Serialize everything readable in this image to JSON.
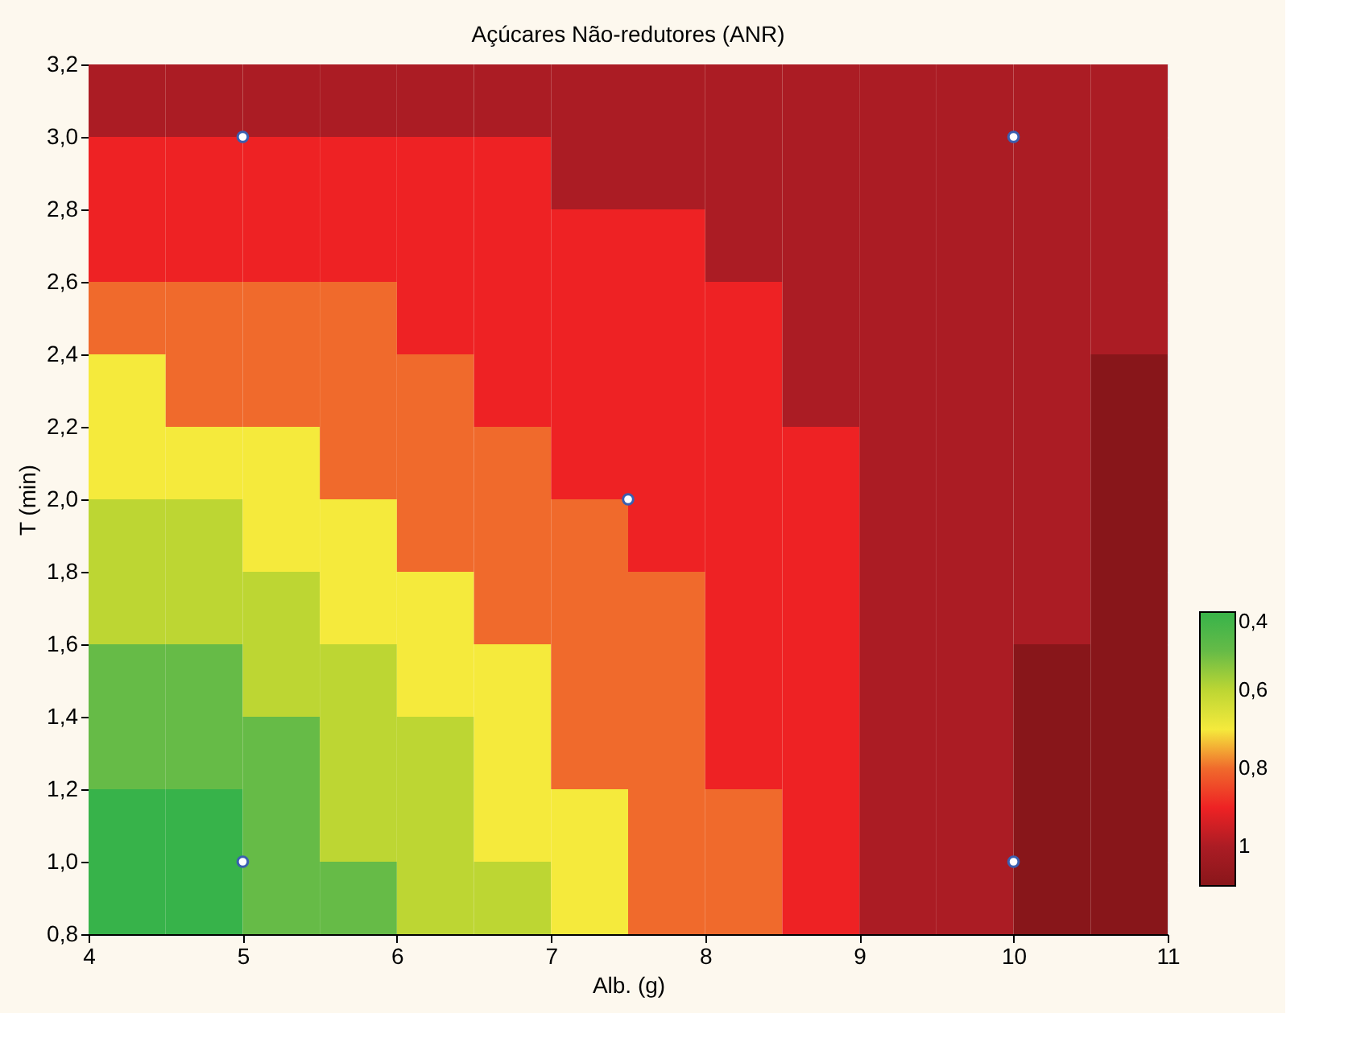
{
  "chart_data": {
    "type": "heatmap",
    "title": "Açúcares Não-redutores (ANR)",
    "xlabel": "Alb. (g)",
    "ylabel": "T (min)",
    "x": [
      4.25,
      4.75,
      5.25,
      5.75,
      6.25,
      6.75,
      7.25,
      7.75,
      8.25,
      8.75,
      9.25,
      9.75,
      10.25,
      10.75
    ],
    "y": [
      3.1,
      2.9,
      2.7,
      2.5,
      2.3,
      2.1,
      1.9,
      1.7,
      1.5,
      1.3,
      1.1,
      0.9
    ],
    "cells": [
      [
        1,
        1,
        1,
        1,
        1,
        1,
        1,
        1,
        1,
        1,
        1,
        1,
        1,
        1
      ],
      [
        0.9,
        0.9,
        0.9,
        0.9,
        0.9,
        0.9,
        1,
        1,
        1,
        1,
        1,
        1,
        1,
        1
      ],
      [
        0.9,
        0.9,
        0.9,
        0.9,
        0.9,
        0.9,
        0.9,
        0.9,
        1,
        1,
        1,
        1,
        1,
        1
      ],
      [
        0.8,
        0.8,
        0.8,
        0.8,
        0.9,
        0.9,
        0.9,
        0.9,
        0.9,
        1,
        1,
        1,
        1,
        1
      ],
      [
        0.7,
        0.8,
        0.8,
        0.8,
        0.8,
        0.9,
        0.9,
        0.9,
        0.9,
        1,
        1,
        1,
        1,
        1.1
      ],
      [
        0.7,
        0.7,
        0.7,
        0.8,
        0.8,
        0.8,
        0.9,
        0.9,
        0.9,
        0.9,
        1,
        1,
        1,
        1.1
      ],
      [
        0.6,
        0.6,
        0.7,
        0.7,
        0.8,
        0.8,
        0.8,
        0.9,
        0.9,
        0.9,
        1,
        1,
        1,
        1.1
      ],
      [
        0.6,
        0.6,
        0.6,
        0.7,
        0.7,
        0.8,
        0.8,
        0.8,
        0.9,
        0.9,
        1,
        1,
        1,
        1.1
      ],
      [
        0.5,
        0.5,
        0.6,
        0.6,
        0.7,
        0.7,
        0.8,
        0.8,
        0.9,
        0.9,
        1,
        1,
        1.1,
        1.1
      ],
      [
        0.5,
        0.5,
        0.5,
        0.6,
        0.6,
        0.7,
        0.8,
        0.8,
        0.9,
        0.9,
        1,
        1,
        1.1,
        1.1
      ],
      [
        0.4,
        0.4,
        0.5,
        0.6,
        0.6,
        0.7,
        0.7,
        0.8,
        0.8,
        0.9,
        1,
        1,
        1.1,
        1.1
      ],
      [
        0.4,
        0.4,
        0.5,
        0.5,
        0.6,
        0.6,
        0.7,
        0.8,
        0.8,
        0.9,
        1,
        1,
        1.1,
        1.1
      ]
    ],
    "clim": [
      1.1,
      0.4
    ],
    "cticks": [
      {
        "value": 1,
        "label": "1"
      },
      {
        "value": 0.8,
        "label": "0,8"
      },
      {
        "value": 0.6,
        "label": "0,6"
      },
      {
        "value": 0.4,
        "label": "0,4"
      }
    ],
    "colors": [
      "#88161a",
      "#ab1c24",
      "#ee2224",
      "#f06a2c",
      "#f5ea3c",
      "#bdd633",
      "#66bb47",
      "#37b34a"
    ],
    "series": [
      {
        "type": "scatter",
        "color": "#3a5fb0",
        "x": [
          5,
          5,
          7.5,
          10,
          10
        ],
        "values": [
          3,
          1,
          2,
          3,
          1
        ]
      }
    ],
    "marker": "circle",
    "xlim": [
      4,
      11
    ],
    "xticks": [
      4,
      5,
      6,
      7,
      8,
      9,
      10,
      11
    ],
    "ylim": [
      0.8,
      3.2
    ],
    "yticks": [
      {
        "value": 0.8,
        "label": "0,8"
      },
      {
        "value": 1.0,
        "label": "1,0"
      },
      {
        "value": 1.2,
        "label": "1,2"
      },
      {
        "value": 1.4,
        "label": "1,4"
      },
      {
        "value": 1.6,
        "label": "1,6"
      },
      {
        "value": 1.8,
        "label": "1,8"
      },
      {
        "value": 2.0,
        "label": "2,0"
      },
      {
        "value": 2.2,
        "label": "2,2"
      },
      {
        "value": 2.4,
        "label": "2,4"
      },
      {
        "value": 2.6,
        "label": "2,6"
      },
      {
        "value": 2.8,
        "label": "2,8"
      },
      {
        "value": 3.0,
        "label": "3,0"
      },
      {
        "value": 3.2,
        "label": "3,2"
      }
    ],
    "grid": true
  }
}
